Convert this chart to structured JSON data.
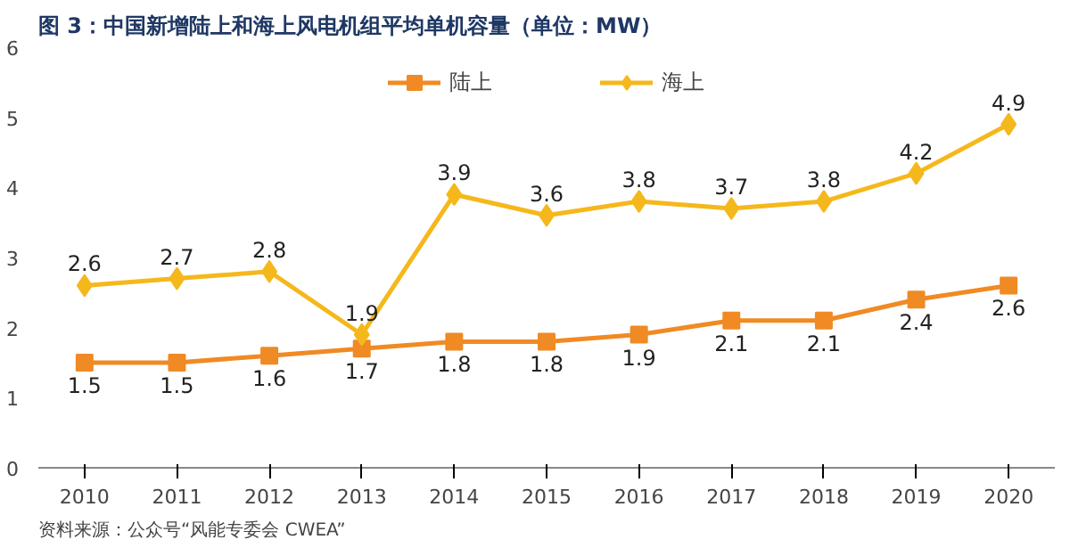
{
  "chart_data": {
    "type": "line",
    "title": "图 3：中国新增陆上和海上风电机组平均单机容量（单位：MW）",
    "categories": [
      "2010",
      "2011",
      "2012",
      "2013",
      "2014",
      "2015",
      "2016",
      "2017",
      "2018",
      "2019",
      "2020"
    ],
    "series": [
      {
        "name": "陆上",
        "color": "#f08a24",
        "marker": "square",
        "values": [
          1.5,
          1.5,
          1.6,
          1.7,
          1.8,
          1.8,
          1.9,
          2.1,
          2.1,
          2.4,
          2.6
        ]
      },
      {
        "name": "海上",
        "color": "#f5b81c",
        "marker": "diamond",
        "values": [
          2.6,
          2.7,
          2.8,
          1.9,
          3.9,
          3.6,
          3.8,
          3.7,
          3.8,
          4.2,
          4.9
        ]
      }
    ],
    "ylim": [
      0,
      6
    ],
    "yticks": [
      0,
      1,
      2,
      3,
      4,
      5,
      6
    ],
    "grid": false,
    "legend": "top",
    "data_labels": true,
    "annotations": [
      "资料来源：公众号“风能专委会 CWEA”"
    ]
  }
}
